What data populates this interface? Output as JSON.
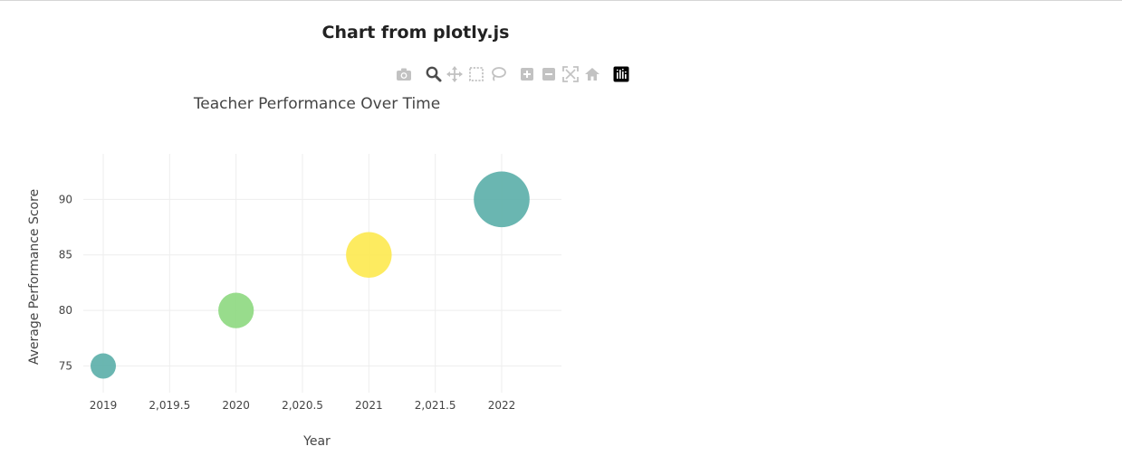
{
  "page": {
    "heading": "Chart from plotly.js"
  },
  "modebar": {
    "buttons": [
      {
        "icon": "camera-icon",
        "active": false
      },
      {
        "icon": "zoom-icon",
        "active": true
      },
      {
        "icon": "pan-icon",
        "active": false
      },
      {
        "icon": "box-select-icon",
        "active": false
      },
      {
        "icon": "lasso-select-icon",
        "active": false
      },
      {
        "icon": "zoom-in-icon",
        "active": false
      },
      {
        "icon": "zoom-out-icon",
        "active": false
      },
      {
        "icon": "autoscale-icon",
        "active": false
      },
      {
        "icon": "reset-axes-icon",
        "active": false
      },
      {
        "icon": "plotly-logo-icon",
        "active": false
      }
    ]
  },
  "colors": {
    "teal": "#5aaea8",
    "green": "#8dd87f",
    "yellow": "#fde94f",
    "grid": "#eeeeee",
    "text": "#444444"
  },
  "chart_data": {
    "type": "scatter",
    "mode": "markers",
    "title": "Teacher Performance Over Time",
    "xlabel": "Year",
    "ylabel": "Average Performance Score",
    "xlim": [
      2018.85,
      2022.45
    ],
    "ylim": [
      72.6,
      94.1
    ],
    "x_ticks": [
      2019,
      2019.5,
      2020,
      2020.5,
      2021,
      2021.5,
      2022
    ],
    "x_tick_labels": [
      "2019",
      "2,019.5",
      "2020",
      "2,020.5",
      "2021",
      "2,021.5",
      "2022"
    ],
    "y_ticks": [
      75,
      80,
      85,
      90
    ],
    "y_tick_labels": [
      "75",
      "80",
      "85",
      "90"
    ],
    "grid": true,
    "legend": false,
    "points": [
      {
        "x": 2019,
        "y": 75,
        "size": 1.0,
        "color": "#5aaea8"
      },
      {
        "x": 2020,
        "y": 80,
        "size": 1.4,
        "color": "#8dd87f"
      },
      {
        "x": 2021,
        "y": 85,
        "size": 1.8,
        "color": "#fde94f"
      },
      {
        "x": 2022,
        "y": 90,
        "size": 2.2,
        "color": "#5aaea8"
      }
    ]
  }
}
